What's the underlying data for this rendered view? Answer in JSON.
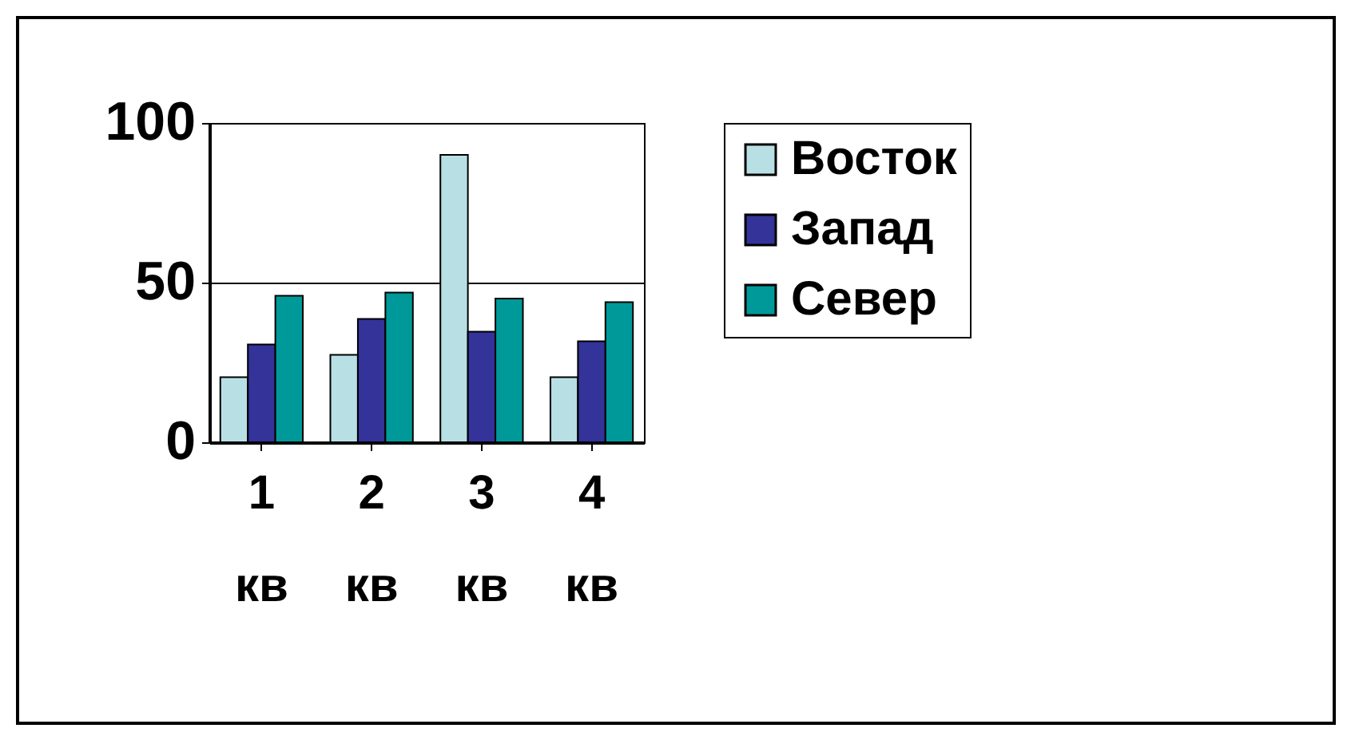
{
  "chart_data": {
    "type": "bar",
    "categories": [
      "1 кв",
      "2 кв",
      "3 кв",
      "4 кв"
    ],
    "series": [
      {
        "name": "Восток",
        "color": "#b8e0e4",
        "values": [
          20.4,
          27.4,
          90,
          20.4
        ]
      },
      {
        "name": "Запад",
        "color": "#333399",
        "values": [
          30.6,
          38.6,
          34.6,
          31.6
        ]
      },
      {
        "name": "Север",
        "color": "#009999",
        "values": [
          45.9,
          46.9,
          45,
          43.9
        ]
      }
    ],
    "ylim": [
      0,
      100
    ],
    "yticks": [
      0,
      50,
      100
    ],
    "grid": "y",
    "legend": "right"
  }
}
